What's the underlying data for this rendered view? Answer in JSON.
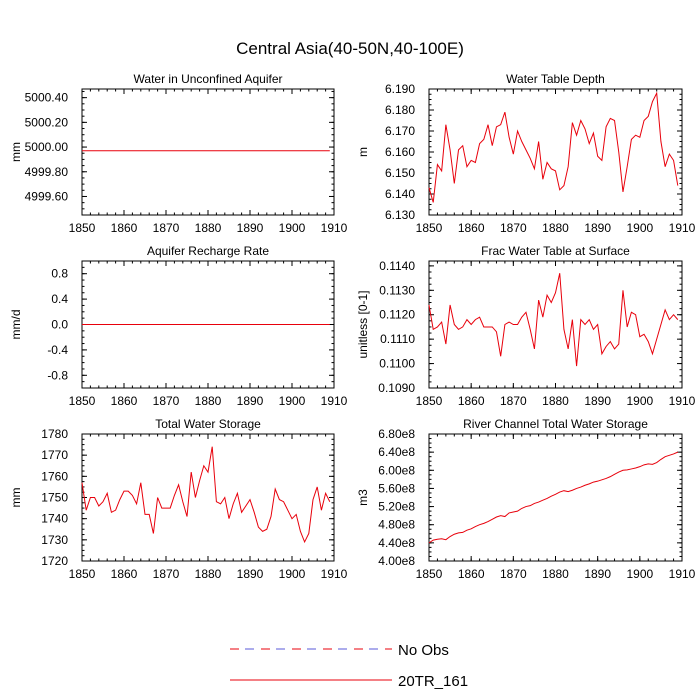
{
  "title": "Central Asia(40-50N,40-100E)",
  "colors": {
    "series": "#e8000b",
    "noobs": "#5a5ad8",
    "axis": "#000000"
  },
  "legend": {
    "items": [
      {
        "label": "No Obs",
        "style": "dashed-alternating"
      },
      {
        "label": "20TR_161",
        "style": "solid"
      }
    ]
  },
  "chart_data": [
    {
      "type": "line",
      "title": "Water in Unconfined Aquifer",
      "ylabel": "mm",
      "xlim": [
        1850,
        1910
      ],
      "ylim": [
        4999.45,
        5000.47
      ],
      "xticks": [
        1850,
        1860,
        1870,
        1880,
        1890,
        1900,
        1910
      ],
      "xtick_labels": [
        "1850",
        "1860",
        "1870",
        "1880",
        "1890",
        "1900",
        "1910"
      ],
      "yticks": [
        4999.6,
        4999.8,
        5000.0,
        5000.2,
        5000.4
      ],
      "ytick_labels": [
        "4999.60",
        "4999.80",
        "5000.00",
        "5000.20",
        "5000.40"
      ],
      "series": [
        {
          "name": "20TR_161",
          "x_start": 1850,
          "values": [
            4999.97,
            4999.97,
            4999.97,
            4999.97,
            4999.97,
            4999.97,
            4999.97,
            4999.97,
            4999.97,
            4999.97,
            4999.97,
            4999.97,
            4999.97,
            4999.97,
            4999.97,
            4999.97,
            4999.97,
            4999.97,
            4999.97,
            4999.97,
            4999.97,
            4999.97,
            4999.97,
            4999.97,
            4999.97,
            4999.97,
            4999.97,
            4999.97,
            4999.97,
            4999.97,
            4999.97,
            4999.97,
            4999.97,
            4999.97,
            4999.97,
            4999.97,
            4999.97,
            4999.97,
            4999.97,
            4999.97,
            4999.97,
            4999.97,
            4999.97,
            4999.97,
            4999.97,
            4999.97,
            4999.97,
            4999.97,
            4999.97,
            4999.97,
            4999.97,
            4999.97,
            4999.97,
            4999.97,
            4999.97,
            4999.97,
            4999.97,
            4999.97,
            4999.97,
            4999.97
          ]
        }
      ]
    },
    {
      "type": "line",
      "title": "Water Table Depth",
      "ylabel": "m",
      "xlim": [
        1850,
        1910
      ],
      "ylim": [
        6.13,
        6.19
      ],
      "xticks": [
        1850,
        1860,
        1870,
        1880,
        1890,
        1900,
        1910
      ],
      "xtick_labels": [
        "1850",
        "1860",
        "1870",
        "1880",
        "1890",
        "1900",
        "1910"
      ],
      "yticks": [
        6.13,
        6.14,
        6.15,
        6.16,
        6.17,
        6.18,
        6.19
      ],
      "ytick_labels": [
        "6.130",
        "6.140",
        "6.150",
        "6.160",
        "6.170",
        "6.180",
        "6.190"
      ],
      "series": [
        {
          "name": "20TR_161",
          "x_start": 1850,
          "values": [
            6.143,
            6.136,
            6.154,
            6.151,
            6.173,
            6.161,
            6.145,
            6.161,
            6.163,
            6.153,
            6.156,
            6.155,
            6.164,
            6.166,
            6.173,
            6.163,
            6.172,
            6.173,
            6.179,
            6.167,
            6.159,
            6.17,
            6.165,
            6.161,
            6.157,
            6.152,
            6.165,
            6.147,
            6.155,
            6.152,
            6.151,
            6.142,
            6.144,
            6.153,
            6.174,
            6.168,
            6.175,
            6.171,
            6.164,
            6.169,
            6.158,
            6.156,
            6.172,
            6.176,
            6.175,
            6.16,
            6.141,
            6.153,
            6.166,
            6.168,
            6.167,
            6.175,
            6.177,
            6.184,
            6.188,
            6.165,
            6.153,
            6.159,
            6.156,
            6.144
          ]
        }
      ]
    },
    {
      "type": "line",
      "title": "Aquifer Recharge Rate",
      "ylabel": "mm/d",
      "xlim": [
        1850,
        1910
      ],
      "ylim": [
        -1.0,
        1.0
      ],
      "xticks": [
        1850,
        1860,
        1870,
        1880,
        1890,
        1900,
        1910
      ],
      "xtick_labels": [
        "1850",
        "1860",
        "1870",
        "1880",
        "1890",
        "1900",
        "1910"
      ],
      "yticks": [
        -0.8,
        -0.4,
        0.0,
        0.4,
        0.8
      ],
      "ytick_labels": [
        "-0.8",
        "-0.4",
        "0.0",
        "0.4",
        "0.8"
      ],
      "series": [
        {
          "name": "20TR_161",
          "x_start": 1850,
          "values": [
            0.0,
            0.0,
            0.0,
            0.0,
            0.0,
            0.0,
            0.0,
            0.0,
            0.0,
            0.0,
            0.0,
            0.0,
            0.0,
            0.0,
            0.0,
            0.0,
            0.0,
            0.0,
            0.0,
            0.0,
            0.0,
            0.0,
            0.0,
            0.0,
            0.0,
            0.0,
            0.0,
            0.0,
            0.0,
            0.0,
            0.0,
            0.0,
            0.0,
            0.0,
            0.0,
            0.0,
            0.0,
            0.0,
            0.0,
            0.0,
            0.0,
            0.0,
            0.0,
            0.0,
            0.0,
            0.0,
            0.0,
            0.0,
            0.0,
            0.0,
            0.0,
            0.0,
            0.0,
            0.0,
            0.0,
            0.0,
            0.0,
            0.0,
            0.0,
            0.0
          ]
        }
      ]
    },
    {
      "type": "line",
      "title": "Frac Water Table at Surface",
      "ylabel": "unitless [0-1]",
      "xlim": [
        1850,
        1910
      ],
      "ylim": [
        0.109,
        0.1142
      ],
      "xticks": [
        1850,
        1860,
        1870,
        1880,
        1890,
        1900,
        1910
      ],
      "xtick_labels": [
        "1850",
        "1860",
        "1870",
        "1880",
        "1890",
        "1900",
        "1910"
      ],
      "yticks": [
        0.109,
        0.11,
        0.111,
        0.112,
        0.113,
        0.114
      ],
      "ytick_labels": [
        "0.1090",
        "0.1100",
        "0.1110",
        "0.1120",
        "0.1130",
        "0.1140"
      ],
      "series": [
        {
          "name": "20TR_161",
          "x_start": 1850,
          "values": [
            0.1124,
            0.1114,
            0.1115,
            0.1117,
            0.1108,
            0.1124,
            0.1116,
            0.1114,
            0.1115,
            0.1118,
            0.1116,
            0.1118,
            0.1119,
            0.1115,
            0.1115,
            0.1115,
            0.1113,
            0.1103,
            0.1116,
            0.1117,
            0.1116,
            0.1116,
            0.1119,
            0.1121,
            0.1114,
            0.1106,
            0.1126,
            0.1119,
            0.1128,
            0.1125,
            0.1129,
            0.1137,
            0.1114,
            0.1106,
            0.1118,
            0.1099,
            0.1118,
            0.1116,
            0.1118,
            0.1114,
            0.1116,
            0.1104,
            0.1107,
            0.1109,
            0.1106,
            0.1108,
            0.113,
            0.1115,
            0.1121,
            0.112,
            0.1111,
            0.1112,
            0.1109,
            0.1104,
            0.111,
            0.1116,
            0.1122,
            0.1118,
            0.112,
            0.1118
          ]
        }
      ]
    },
    {
      "type": "line",
      "title": "Total Water Storage",
      "ylabel": "mm",
      "xlim": [
        1850,
        1910
      ],
      "ylim": [
        1720,
        1780
      ],
      "xticks": [
        1850,
        1860,
        1870,
        1880,
        1890,
        1900,
        1910
      ],
      "xtick_labels": [
        "1850",
        "1860",
        "1870",
        "1880",
        "1890",
        "1900",
        "1910"
      ],
      "yticks": [
        1720,
        1730,
        1740,
        1750,
        1760,
        1770,
        1780
      ],
      "ytick_labels": [
        "1720",
        "1730",
        "1740",
        "1750",
        "1760",
        "1770",
        "1780"
      ],
      "series": [
        {
          "name": "20TR_161",
          "x_start": 1850,
          "values": [
            1757,
            1744,
            1750,
            1750,
            1746,
            1748,
            1752,
            1743,
            1744,
            1749,
            1753,
            1753,
            1751,
            1747,
            1757,
            1742,
            1742,
            1733,
            1750,
            1745,
            1745,
            1745,
            1751,
            1756,
            1748,
            1741,
            1762,
            1750,
            1758,
            1765,
            1762,
            1774,
            1748,
            1747,
            1750,
            1740,
            1747,
            1752,
            1743,
            1746,
            1749,
            1743,
            1736,
            1734,
            1735,
            1741,
            1754,
            1749,
            1748,
            1744,
            1740,
            1742,
            1734,
            1729,
            1733,
            1749,
            1755,
            1744,
            1752,
            1748
          ]
        }
      ]
    },
    {
      "type": "line",
      "title": "River Channel Total Water Storage",
      "ylabel": "m3",
      "xlim": [
        1850,
        1910
      ],
      "ylim": [
        400000000.0,
        680000000.0
      ],
      "xticks": [
        1850,
        1860,
        1870,
        1880,
        1890,
        1900,
        1910
      ],
      "xtick_labels": [
        "1850",
        "1860",
        "1870",
        "1880",
        "1890",
        "1900",
        "1910"
      ],
      "yticks": [
        400000000.0,
        440000000.0,
        480000000.0,
        520000000.0,
        560000000.0,
        600000000.0,
        640000000.0,
        680000000.0
      ],
      "ytick_labels": [
        "4.00e8",
        "4.40e8",
        "4.80e8",
        "5.20e8",
        "5.60e8",
        "6.00e8",
        "6.40e8",
        "6.80e8"
      ],
      "series": [
        {
          "name": "20TR_161",
          "x_start": 1850,
          "values": [
            440000000.0,
            446000000.0,
            448000000.0,
            449000000.0,
            447000000.0,
            454000000.0,
            459000000.0,
            462000000.0,
            463000000.0,
            468000000.0,
            471000000.0,
            476000000.0,
            480000000.0,
            483000000.0,
            487000000.0,
            492000000.0,
            497000000.0,
            500000000.0,
            498000000.0,
            506000000.0,
            508000000.0,
            510000000.0,
            516000000.0,
            520000000.0,
            522000000.0,
            527000000.0,
            530000000.0,
            534000000.0,
            538000000.0,
            543000000.0,
            547000000.0,
            552000000.0,
            555000000.0,
            553000000.0,
            556000000.0,
            560000000.0,
            563000000.0,
            567000000.0,
            570000000.0,
            574000000.0,
            576000000.0,
            579000000.0,
            582000000.0,
            586000000.0,
            591000000.0,
            596000000.0,
            600000000.0,
            601000000.0,
            603000000.0,
            605000000.0,
            608000000.0,
            612000000.0,
            614000000.0,
            613000000.0,
            617000000.0,
            624000000.0,
            630000000.0,
            633000000.0,
            636000000.0,
            640000000.0
          ]
        }
      ]
    }
  ]
}
